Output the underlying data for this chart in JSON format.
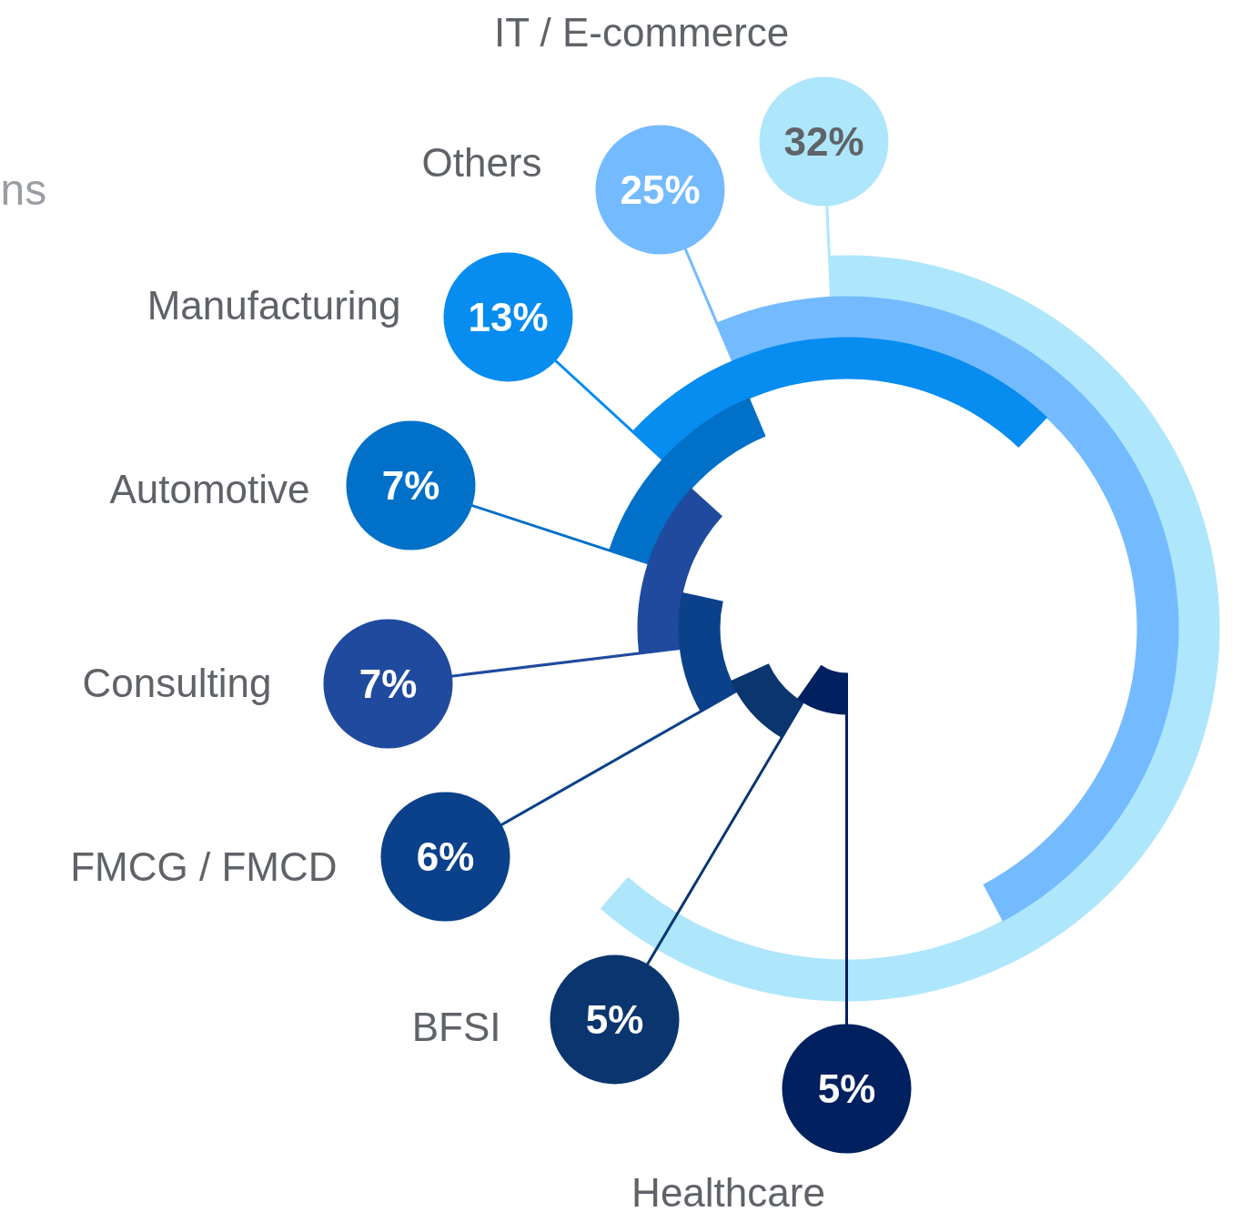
{
  "chart_data": {
    "type": "other",
    "categories": [
      "IT / E-commerce",
      "Others",
      "Manufacturing",
      "Automotive",
      "Consulting",
      "FMCG / FMCD",
      "BFSI",
      "Healthcare"
    ],
    "values": [
      32,
      25,
      13,
      7,
      7,
      6,
      5,
      5
    ],
    "value_labels": [
      "32%",
      "25%",
      "13%",
      "7%",
      "7%",
      "6%",
      "5%",
      "5%"
    ],
    "colors": [
      "#aee6fc",
      "#74baff",
      "#078cf0",
      "#0070c8",
      "#1f4a9e",
      "#0b418a",
      "#0a356e",
      "#00205f"
    ],
    "annotations": [
      "ns"
    ]
  }
}
